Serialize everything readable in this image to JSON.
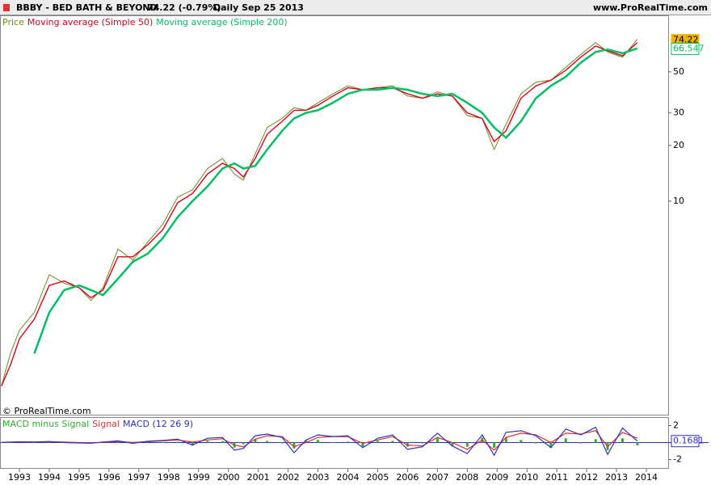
{
  "header": {
    "title": "BBBY - BED BATH & BEYOND",
    "quote": "74.22 (-0.79%)",
    "period": "Daily  Sep 25 2013",
    "site": "www.ProRealTime.com"
  },
  "chart_data": [
    {
      "type": "line",
      "log_scale": true,
      "copyright": "© ProRealTime.com",
      "x": [
        1992.4,
        1992.7,
        1993.0,
        1993.5,
        1994.0,
        1994.5,
        1995.0,
        1995.4,
        1995.8,
        1996.3,
        1996.8,
        1997.3,
        1997.8,
        1998.3,
        1998.8,
        1999.3,
        1999.8,
        2000.2,
        2000.5,
        2000.9,
        2001.3,
        2001.8,
        2002.2,
        2002.6,
        2003.0,
        2003.5,
        2004.0,
        2004.5,
        2005.0,
        2005.5,
        2006.0,
        2006.5,
        2007.0,
        2007.5,
        2008.0,
        2008.5,
        2008.9,
        2009.3,
        2009.8,
        2010.3,
        2010.8,
        2011.3,
        2011.8,
        2012.3,
        2012.7,
        2013.2,
        2013.7
      ],
      "series": [
        {
          "name": "Price",
          "color": "#6b8a1e",
          "values": [
            1.0,
            1.5,
            2.0,
            2.5,
            4.0,
            3.6,
            3.4,
            2.9,
            3.4,
            5.5,
            4.8,
            6.0,
            7.5,
            10.5,
            11.5,
            15,
            17,
            14,
            13,
            18,
            25,
            28,
            32,
            31,
            34,
            38,
            42,
            40,
            41,
            42,
            37,
            36,
            39,
            37,
            29,
            28,
            19,
            26,
            38,
            44,
            45,
            53,
            62,
            72,
            64,
            60,
            75
          ]
        },
        {
          "name": "Moving average (Simple 50)",
          "color": "#e0001a",
          "values": [
            1.0,
            1.3,
            1.8,
            2.3,
            3.5,
            3.7,
            3.4,
            3.0,
            3.3,
            5.0,
            5.0,
            5.8,
            7.0,
            9.8,
            11.0,
            14,
            16,
            15,
            13.5,
            17,
            23,
            27,
            31,
            31,
            33,
            37,
            41,
            40,
            41,
            41,
            38,
            36,
            38,
            37,
            30,
            28,
            21,
            24,
            36,
            42,
            45,
            51,
            60,
            69,
            65,
            61,
            72
          ]
        },
        {
          "name": "Moving average (Simple 200)",
          "color": "#00c060",
          "values": [
            null,
            null,
            null,
            1.5,
            2.5,
            3.3,
            3.5,
            3.3,
            3.1,
            3.8,
            4.7,
            5.2,
            6.3,
            8.2,
            10.0,
            12,
            15,
            16,
            15,
            15.5,
            19,
            24,
            28,
            30,
            31,
            34,
            38,
            40,
            40,
            41,
            40,
            38,
            37,
            38,
            34,
            30,
            25,
            22,
            27,
            36,
            42,
            47,
            56,
            64,
            66,
            63,
            67
          ]
        }
      ],
      "xlim": [
        1992.35,
        2014.73
      ],
      "ylim": [
        0.7,
        100
      ],
      "yticks": [
        10,
        20,
        30,
        50
      ],
      "badges": [
        {
          "value": 74.22,
          "color": "#f0b400"
        },
        {
          "value": 66.547,
          "color": "#00c060"
        }
      ]
    },
    {
      "type": "macd",
      "x": [
        1992.4,
        1992.7,
        1993.0,
        1993.5,
        1994.0,
        1994.5,
        1995.0,
        1995.4,
        1995.8,
        1996.3,
        1996.8,
        1997.3,
        1997.8,
        1998.3,
        1998.8,
        1999.3,
        1999.8,
        2000.2,
        2000.5,
        2000.9,
        2001.3,
        2001.8,
        2002.2,
        2002.6,
        2003.0,
        2003.5,
        2004.0,
        2004.5,
        2005.0,
        2005.5,
        2006.0,
        2006.5,
        2007.0,
        2007.5,
        2008.0,
        2008.5,
        2008.9,
        2009.3,
        2009.8,
        2010.3,
        2010.8,
        2011.3,
        2011.8,
        2012.3,
        2012.7,
        2013.2,
        2013.7
      ],
      "series": [
        {
          "name": "MACD minus Signal",
          "color": "#30b030",
          "style": "bar",
          "values": [
            0.01,
            0.02,
            0.02,
            0.0,
            0.03,
            -0.05,
            -0.05,
            -0.04,
            0.04,
            0.08,
            -0.12,
            0.05,
            0.05,
            0.1,
            -0.35,
            0.2,
            0.15,
            -0.6,
            -0.2,
            0.4,
            0.2,
            -0.1,
            -0.7,
            0.3,
            0.3,
            0.0,
            0.1,
            -0.5,
            0.2,
            0.2,
            -0.5,
            -0.1,
            0.5,
            -0.4,
            -0.5,
            0.6,
            -0.6,
            0.6,
            0.3,
            -0.1,
            -0.6,
            0.5,
            -0.1,
            0.4,
            -0.9,
            0.5,
            -0.33
          ]
        },
        {
          "name": "Signal",
          "color": "#e03030",
          "style": "line",
          "values": [
            0.01,
            0.03,
            0.06,
            0.06,
            0.09,
            0.05,
            0.0,
            -0.04,
            0.02,
            0.12,
            0.02,
            0.1,
            0.2,
            0.3,
            0.05,
            0.3,
            0.45,
            -0.3,
            -0.5,
            0.4,
            0.8,
            0.7,
            -0.5,
            0.0,
            0.6,
            0.7,
            0.7,
            -0.1,
            0.3,
            0.7,
            -0.3,
            -0.4,
            0.6,
            0.0,
            -0.8,
            0.3,
            -0.9,
            0.6,
            1.1,
            0.9,
            0.0,
            1.1,
            1.0,
            1.4,
            -0.5,
            1.2,
            0.5
          ]
        },
        {
          "name": "MACD (12 26 9)",
          "color": "#3030c0",
          "style": "line",
          "values": [
            0.02,
            0.05,
            0.08,
            0.06,
            0.12,
            0.0,
            -0.05,
            -0.08,
            0.06,
            0.2,
            -0.1,
            0.15,
            0.25,
            0.4,
            -0.3,
            0.5,
            0.6,
            -0.9,
            -0.7,
            0.8,
            1.0,
            0.6,
            -1.2,
            0.3,
            0.9,
            0.7,
            0.8,
            -0.6,
            0.5,
            0.9,
            -0.8,
            -0.5,
            1.1,
            -0.4,
            -1.3,
            0.9,
            -1.5,
            1.2,
            1.4,
            0.8,
            -0.6,
            1.6,
            0.9,
            1.8,
            -1.4,
            1.7,
            0.17
          ]
        }
      ],
      "xlim": [
        1992.35,
        2014.73
      ],
      "xticks": [
        1993,
        1994,
        1995,
        1996,
        1997,
        1998,
        1999,
        2000,
        2001,
        2002,
        2003,
        2004,
        2005,
        2006,
        2007,
        2008,
        2009,
        2010,
        2011,
        2012,
        2013,
        2014
      ],
      "ylim": [
        -3,
        2.9
      ],
      "yticks": [
        -2,
        2
      ],
      "zero_line": 0,
      "badges": [
        {
          "value": 0.1681,
          "color": "#3030c0"
        }
      ]
    }
  ]
}
